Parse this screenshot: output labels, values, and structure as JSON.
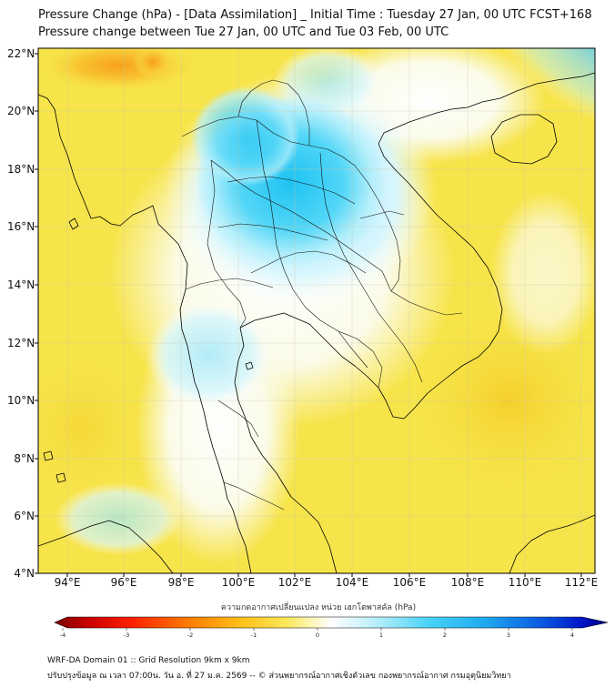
{
  "title_line1": "Pressure Change (hPa) - [Data Assimilation] _ Initial Time : Tuesday 27 Jan, 00 UTC FCST+168",
  "title_line2": "Pressure change between Tue 27 Jan, 00 UTC and Tue 03 Feb, 00 UTC",
  "lat_labels": [
    "22°N",
    "20°N",
    "18°N",
    "16°N",
    "14°N",
    "12°N",
    "10°N",
    "8°N",
    "6°N",
    "4°N"
  ],
  "lon_labels": [
    "94°E",
    "96°E",
    "98°E",
    "100°E",
    "102°E",
    "104°E",
    "106°E",
    "108°E",
    "110°E",
    "112°E"
  ],
  "colorbar": {
    "title": "ความกดอากาศเปลี่ยนแปลง หน่วย เฮกโตพาสคัล (hPa)",
    "ticks": [
      "-4",
      "-3",
      "-2",
      "-1",
      "0",
      "1",
      "2",
      "3",
      "4"
    ],
    "range": [
      -4,
      4
    ]
  },
  "footer_line1": "WRF-DA Domain 01 :: Grid Resolution 9km x 9km",
  "footer_line2": "ปรับปรุงข้อมูล ณ เวลา 07:00น. วัน อ. ที่ 27 ม.ค. 2569 -- © ส่วนพยากรณ์อากาศเชิงตัวเลข กองพยากรณ์อากาศ กรมอุตุนิยมวิทยา",
  "colors": {
    "negative_max": "#7a0000",
    "negative_mid": "#ff8c00",
    "neutral": "#ffffff",
    "positive_mid": "#3ad0f5",
    "positive_max": "#00008b",
    "field_dominant": "#f7e44a",
    "coastline": "#000000"
  }
}
